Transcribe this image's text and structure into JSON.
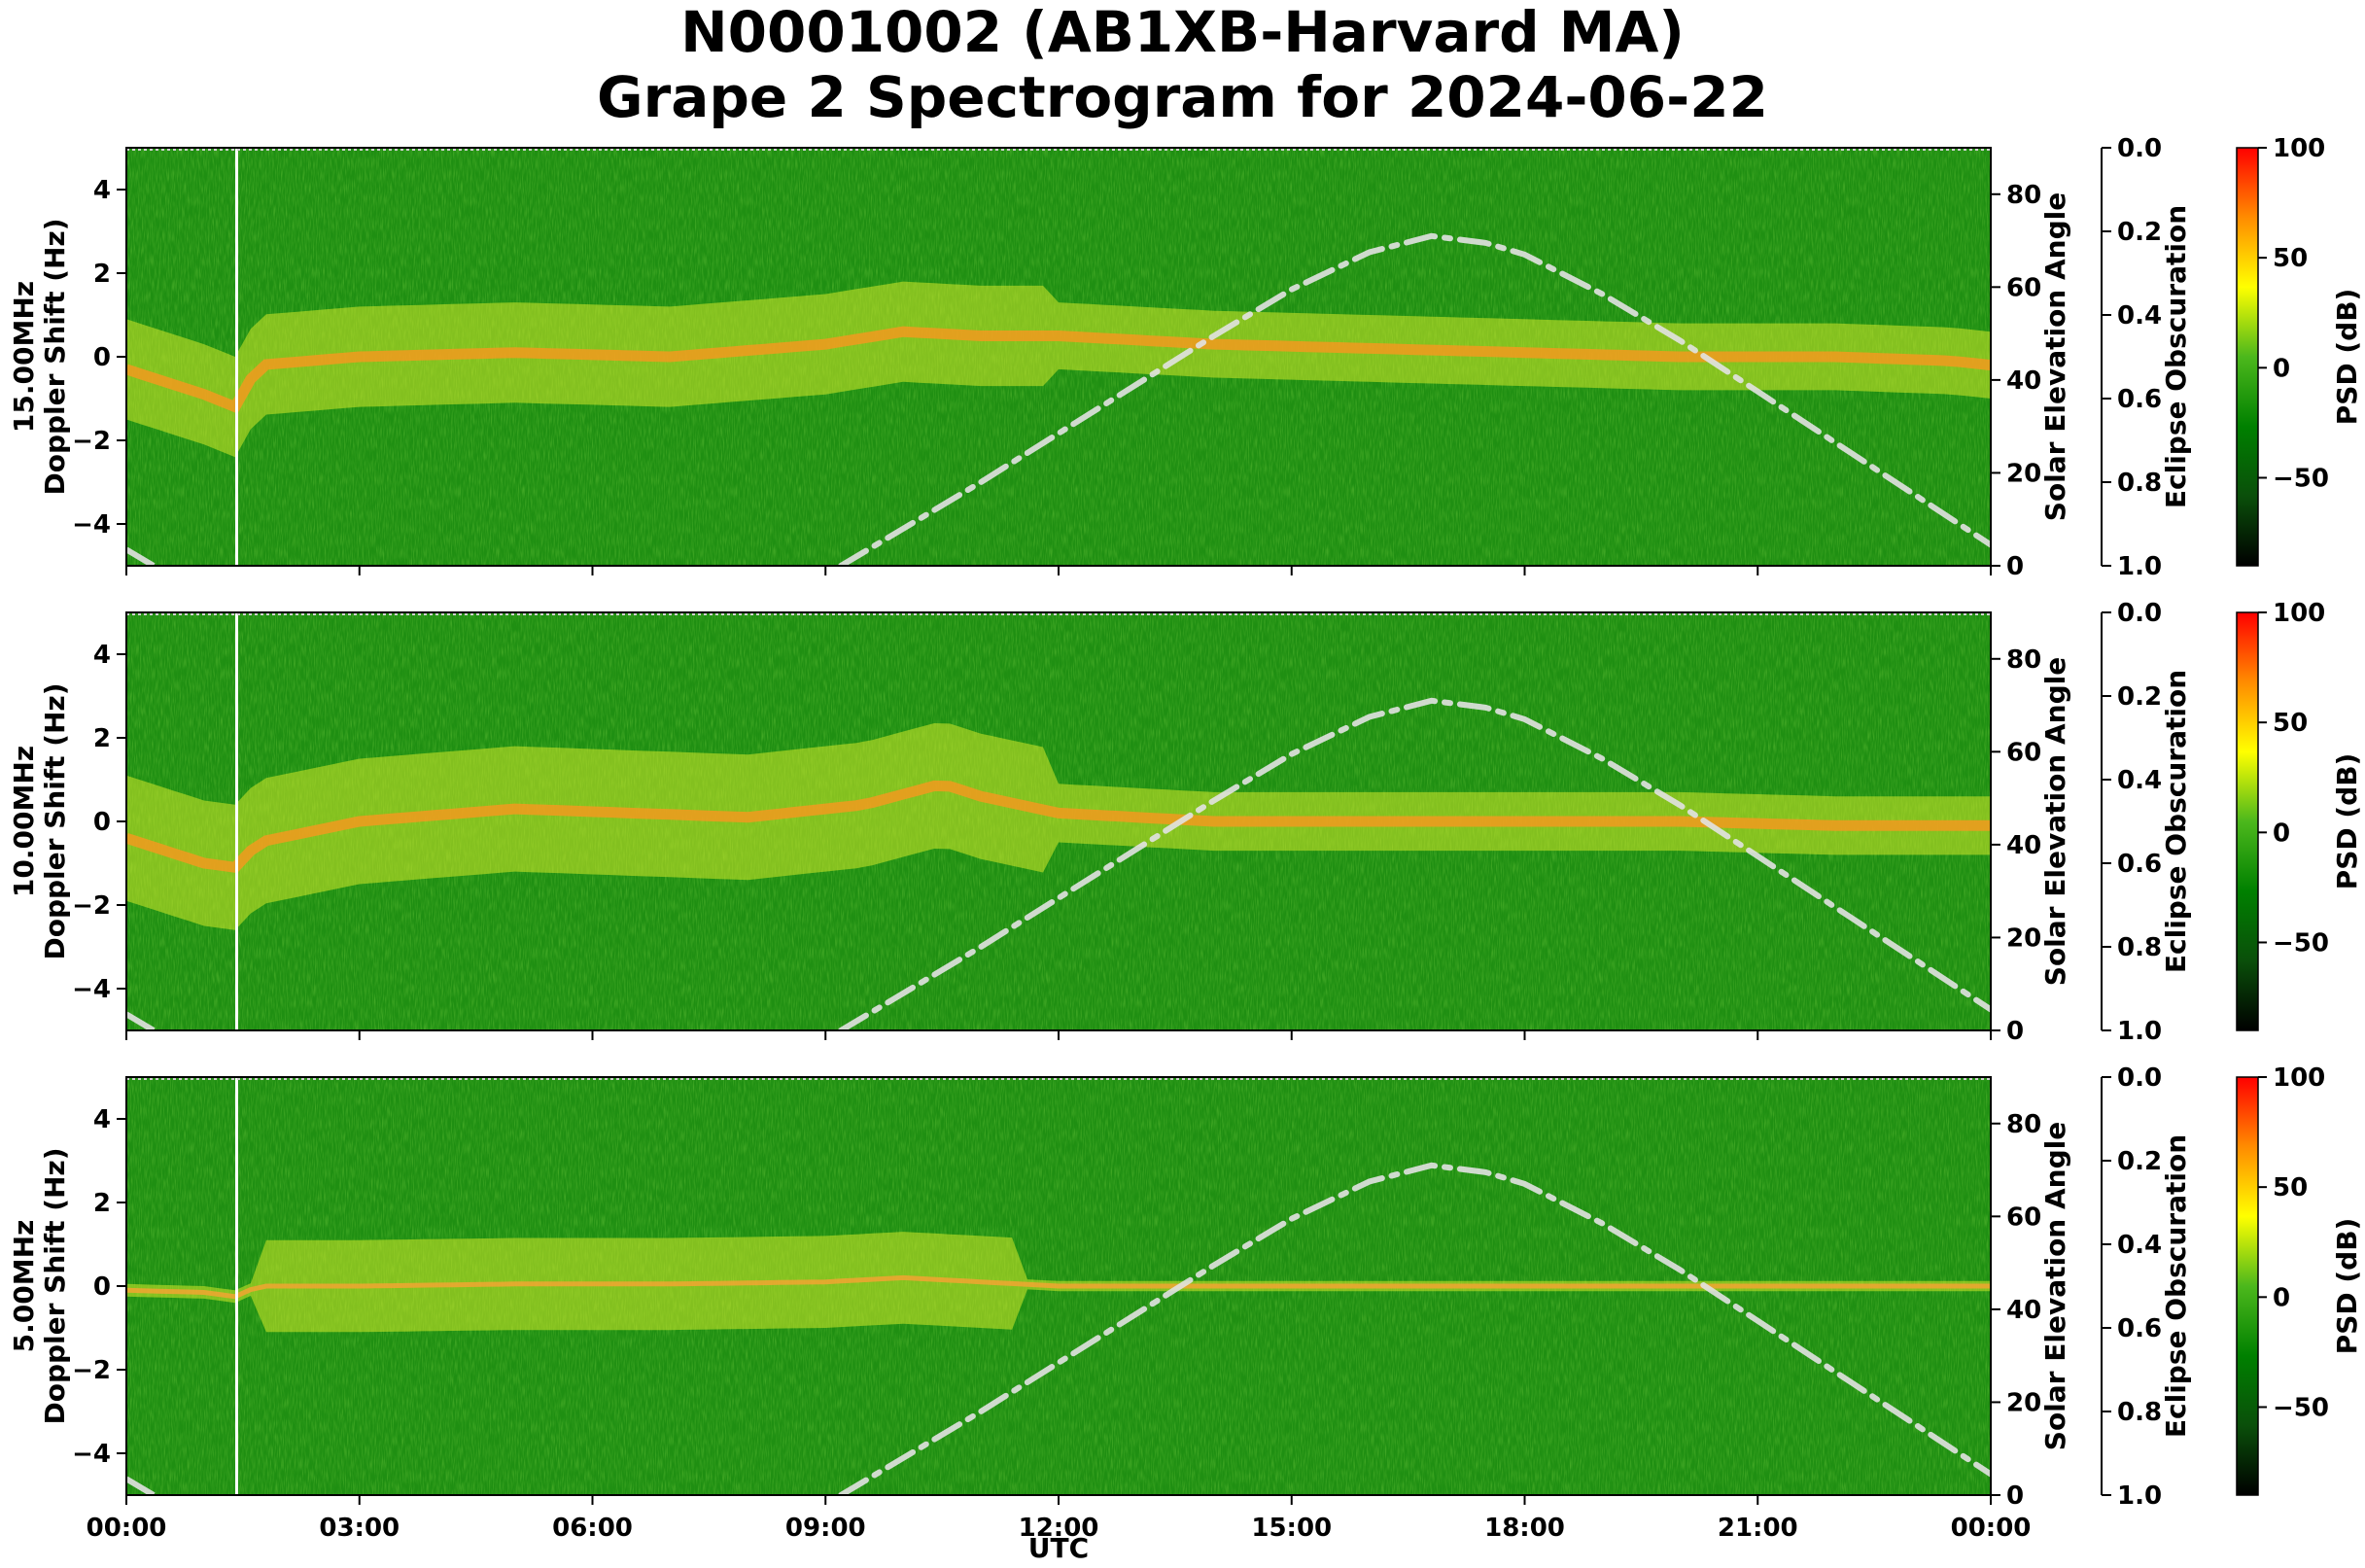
{
  "chart_data": {
    "type": "heatmap",
    "title": [
      "N0001002 (AB1XB-Harvard MA)",
      "Grape 2 Spectrogram for 2024-06-22"
    ],
    "xlabel": "UTC",
    "x_ticks": [
      "00:00",
      "03:00",
      "06:00",
      "09:00",
      "12:00",
      "15:00",
      "18:00",
      "21:00",
      "00:00"
    ],
    "xlim_hours": [
      0,
      24
    ],
    "ylabel_doppler": "Doppler Shift (Hz)",
    "ylim_doppler": [
      -5,
      5
    ],
    "y_ticks_doppler": [
      4,
      2,
      0,
      -2,
      -4
    ],
    "y_tick_labels_doppler": [
      "4",
      "2",
      "0",
      "−2",
      "−4"
    ],
    "ylabel_elevation": "Solar Elevation Angle",
    "ylim_elevation": [
      0,
      90
    ],
    "y_ticks_elevation": [
      "0",
      "20",
      "40",
      "60",
      "80"
    ],
    "ylabel_obscuration": "Eclipse Obscuration",
    "ylim_obscuration": [
      1.0,
      0.0
    ],
    "y_ticks_obscuration": [
      "0.0",
      "0.2",
      "0.4",
      "0.6",
      "0.8",
      "1.0"
    ],
    "colorbar_label": "PSD (dB)",
    "colorbar_range": [
      -90,
      100
    ],
    "colorbar_ticks": [
      "100",
      "50",
      "0",
      "−50"
    ],
    "colorbar_tick_values": [
      100,
      50,
      0,
      -50
    ],
    "colorbar_colors": [
      "#000000",
      "#0a4f0a",
      "#008000",
      "#4cb81c",
      "#ffff00",
      "#ff8c00",
      "#ff0000"
    ],
    "solar_elevation": {
      "style": "dash-dot",
      "color": "#e2e2e2",
      "hours": [
        0,
        1,
        2,
        3,
        4,
        5,
        6,
        7,
        8,
        9,
        9.2,
        10,
        11,
        12,
        13,
        14,
        15,
        16,
        16.8,
        17.5,
        18,
        19,
        20,
        21,
        22,
        23,
        24
      ],
      "elevation": [
        0,
        0,
        0,
        0,
        0,
        0,
        0,
        0,
        0,
        0,
        0,
        8,
        18,
        28.5,
        39,
        49.5,
        59.5,
        67.5,
        71,
        69.5,
        67,
        58.5,
        48.5,
        37.5,
        26.5,
        15.5,
        4.5
      ],
      "early_hours": [
        0,
        0.35
      ],
      "early_elevation": [
        3.5,
        0
      ]
    },
    "panels": [
      {
        "label": "15.00MHz",
        "ridge": {
          "hours": [
            0,
            1,
            1.4,
            1.7,
            3,
            5,
            7,
            9,
            10,
            11,
            12,
            14,
            16,
            18,
            20,
            22,
            23.5,
            24
          ],
          "doppler": [
            -0.3,
            -0.9,
            -1.2,
            -0.2,
            0,
            0.1,
            0,
            0.3,
            0.6,
            0.5,
            0.5,
            0.3,
            0.2,
            0.1,
            0,
            0,
            -0.1,
            -0.2
          ]
        }
      },
      {
        "label": "10.00MHz",
        "ridge": {
          "hours": [
            0,
            1,
            1.4,
            1.7,
            3,
            5,
            6.5,
            8,
            9.5,
            10.5,
            11,
            12,
            14,
            16,
            18,
            20,
            22,
            24
          ],
          "doppler": [
            -0.4,
            -1.0,
            -1.1,
            -0.5,
            0,
            0.3,
            0.2,
            0.1,
            0.4,
            0.9,
            0.6,
            0.2,
            0,
            0,
            0,
            0,
            -0.1,
            -0.1
          ]
        }
      },
      {
        "label": "5.00MHz",
        "ridge": {
          "hours": [
            0,
            1,
            1.4,
            1.7,
            3,
            5,
            7,
            9,
            10,
            11,
            12,
            13.5,
            24
          ],
          "doppler": [
            -0.1,
            -0.15,
            -0.25,
            0,
            0,
            0.05,
            0.05,
            0.1,
            0.2,
            0.1,
            0,
            0,
            0
          ]
        }
      }
    ],
    "data_gap_hour": 1.42
  }
}
